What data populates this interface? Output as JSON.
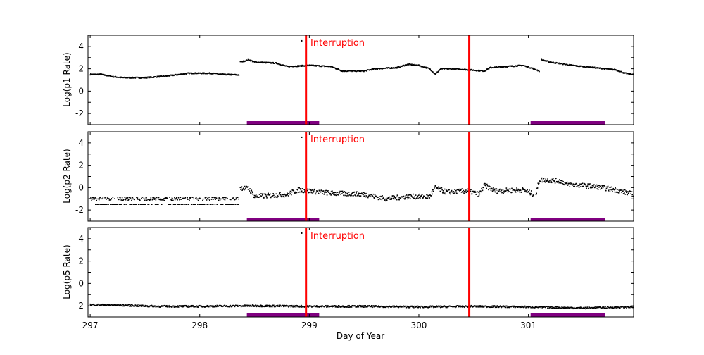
{
  "chart_data": [
    {
      "type": "scatter",
      "ylabel": "Log(p1 Rate)",
      "xlim": [
        296.98,
        301.96
      ],
      "ylim": [
        -3,
        5
      ],
      "yticks": [
        -2,
        0,
        2,
        4
      ],
      "grid": false,
      "series_trend": {
        "x": [
          297.0,
          297.1,
          297.2,
          297.3,
          297.5,
          297.7,
          297.9,
          298.1,
          298.2,
          298.36,
          298.37,
          298.45,
          298.5,
          298.7,
          298.8,
          299.0,
          299.2,
          299.3,
          299.5,
          299.6,
          299.8,
          299.9,
          300.0,
          300.1,
          300.15,
          300.2,
          300.4,
          300.6,
          300.65,
          300.8,
          300.95,
          301.05,
          301.1,
          301.12,
          301.2,
          301.4,
          301.6,
          301.8,
          301.88,
          301.96
        ],
        "y": [
          1.5,
          1.5,
          1.3,
          1.2,
          1.2,
          1.35,
          1.6,
          1.6,
          1.5,
          1.45,
          2.6,
          2.8,
          2.6,
          2.5,
          2.2,
          2.3,
          2.2,
          1.8,
          1.8,
          2.0,
          2.1,
          2.4,
          2.3,
          2.0,
          1.5,
          2.0,
          1.95,
          1.8,
          2.1,
          2.2,
          2.3,
          2.0,
          1.8,
          2.8,
          2.6,
          2.3,
          2.1,
          1.9,
          1.6,
          1.5
        ]
      },
      "outliers": {
        "x": [
          298.93
        ],
        "y": [
          4.5
        ]
      },
      "interruptions": [
        298.97,
        300.46
      ],
      "interruption_label": "Interruption",
      "bars": [
        [
          298.43,
          299.09
        ],
        [
          301.02,
          301.7
        ]
      ]
    },
    {
      "type": "scatter",
      "ylabel": "Log(p2 Rate)",
      "xlim": [
        296.98,
        301.96
      ],
      "ylim": [
        -3,
        5
      ],
      "yticks": [
        -2,
        0,
        2,
        4
      ],
      "grid": false,
      "series_trend": {
        "x": [
          297.0,
          297.5,
          298.0,
          298.36,
          298.37,
          298.45,
          298.5,
          298.8,
          298.9,
          299.0,
          299.2,
          299.5,
          299.7,
          299.9,
          300.1,
          300.15,
          300.25,
          300.45,
          300.55,
          300.6,
          300.7,
          300.95,
          301.05,
          301.07,
          301.1,
          301.3,
          301.35,
          301.6,
          301.8,
          301.96
        ],
        "y": [
          -1.2,
          -1.2,
          -1.2,
          -1.2,
          0.0,
          -0.1,
          -0.8,
          -0.6,
          -0.2,
          -0.3,
          -0.5,
          -0.6,
          -1.0,
          -0.8,
          -0.8,
          0.0,
          -0.4,
          -0.3,
          -0.6,
          0.2,
          -0.3,
          -0.2,
          -0.6,
          -0.6,
          0.7,
          0.6,
          0.3,
          0.1,
          -0.2,
          -0.6
        ]
      },
      "outliers": {
        "x": [
          298.93
        ],
        "y": [
          4.5
        ]
      },
      "interruptions": [
        298.97,
        300.46
      ],
      "interruption_label": "Interruption",
      "bars": [
        [
          298.43,
          299.09
        ],
        [
          301.02,
          301.7
        ]
      ]
    },
    {
      "type": "scatter",
      "ylabel": "Log(p5 Rate)",
      "xlabel": "Day of Year",
      "xlim": [
        296.98,
        301.96
      ],
      "ylim": [
        -3,
        5
      ],
      "yticks": [
        -2,
        0,
        2,
        4
      ],
      "xticks": [
        297,
        298,
        299,
        300,
        301
      ],
      "grid": false,
      "series_trend": {
        "x": [
          297.0,
          297.3,
          297.6,
          298.0,
          298.5,
          299.0,
          299.5,
          300.0,
          300.5,
          301.0,
          301.5,
          301.96
        ],
        "y": [
          -1.9,
          -1.95,
          -2.05,
          -2.05,
          -2.0,
          -2.05,
          -2.05,
          -2.1,
          -2.05,
          -2.1,
          -2.2,
          -2.1
        ]
      },
      "outliers": {
        "x": [
          298.93
        ],
        "y": [
          4.5
        ]
      },
      "interruptions": [
        298.97,
        300.46
      ],
      "interruption_label": "Interruption",
      "bars": [
        [
          298.43,
          299.09
        ],
        [
          301.02,
          301.7
        ]
      ]
    }
  ],
  "colors": {
    "interruption": "#ff0000",
    "bar": "#800080",
    "points": "#000000"
  }
}
